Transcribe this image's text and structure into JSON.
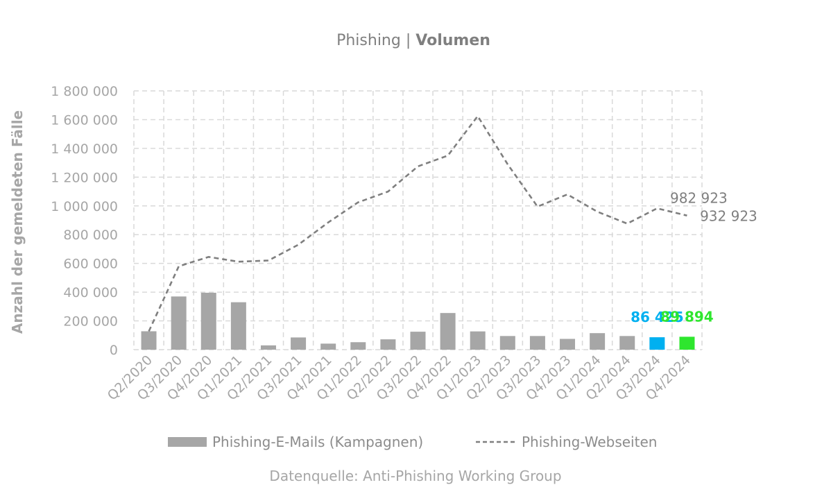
{
  "title": {
    "regular": "Phishing | ",
    "bold": "Volumen"
  },
  "source_note": "Datenquelle: Anti-Phishing Working Group",
  "chart_data": {
    "type": "bar",
    "categories": [
      "Q2/2020",
      "Q3/2020",
      "Q4/2020",
      "Q1/2021",
      "Q2/2021",
      "Q3/2021",
      "Q4/2021",
      "Q1/2022",
      "Q2/2022",
      "Q3/2022",
      "Q4/2022",
      "Q1/2023",
      "Q2/2023",
      "Q3/2023",
      "Q4/2023",
      "Q1/2024",
      "Q2/2024",
      "Q3/2024",
      "Q4/2024"
    ],
    "ylabel": "Anzahl der gemeldeten Fälle",
    "ylim": [
      0,
      1800000
    ],
    "yticks": [
      0,
      200000,
      400000,
      600000,
      800000,
      1000000,
      1200000,
      1400000,
      1600000,
      1800000
    ],
    "ytick_labels": [
      "0",
      "200 000",
      "400 000",
      "600 000",
      "800 000",
      "1 000 000",
      "1 200 000",
      "1 400 000",
      "1 600 000",
      "1 800 000"
    ],
    "grid": true,
    "legend_position": "bottom",
    "series": [
      {
        "name": "Phishing-E-Mails (Kampagnen)",
        "type": "bar",
        "color": "#a6a6a6",
        "values": [
          128000,
          370000,
          396000,
          330000,
          30000,
          85000,
          42000,
          52000,
          72000,
          125000,
          255000,
          127000,
          95000,
          95000,
          75000,
          115000,
          95000,
          86425,
          89894
        ],
        "point_colors": {
          "17": "#00b0f0",
          "18": "#2ee62e"
        },
        "data_labels": [
          {
            "index": 17,
            "text": "86 425",
            "color": "#00b0f0"
          },
          {
            "index": 18,
            "text": "89 894",
            "color": "#2ee62e"
          }
        ]
      },
      {
        "name": "Phishing-Webseiten",
        "type": "line",
        "style": "dashed",
        "color": "#7f7f7f",
        "values": [
          128000,
          580000,
          645000,
          612000,
          620000,
          730000,
          885000,
          1025000,
          1100000,
          1275000,
          1350000,
          1625000,
          1290000,
          995000,
          1080000,
          960000,
          877000,
          982923,
          932923
        ],
        "data_labels": [
          {
            "index": 17,
            "text": "982 923"
          },
          {
            "index": 18,
            "text": "932 923"
          }
        ]
      }
    ]
  }
}
